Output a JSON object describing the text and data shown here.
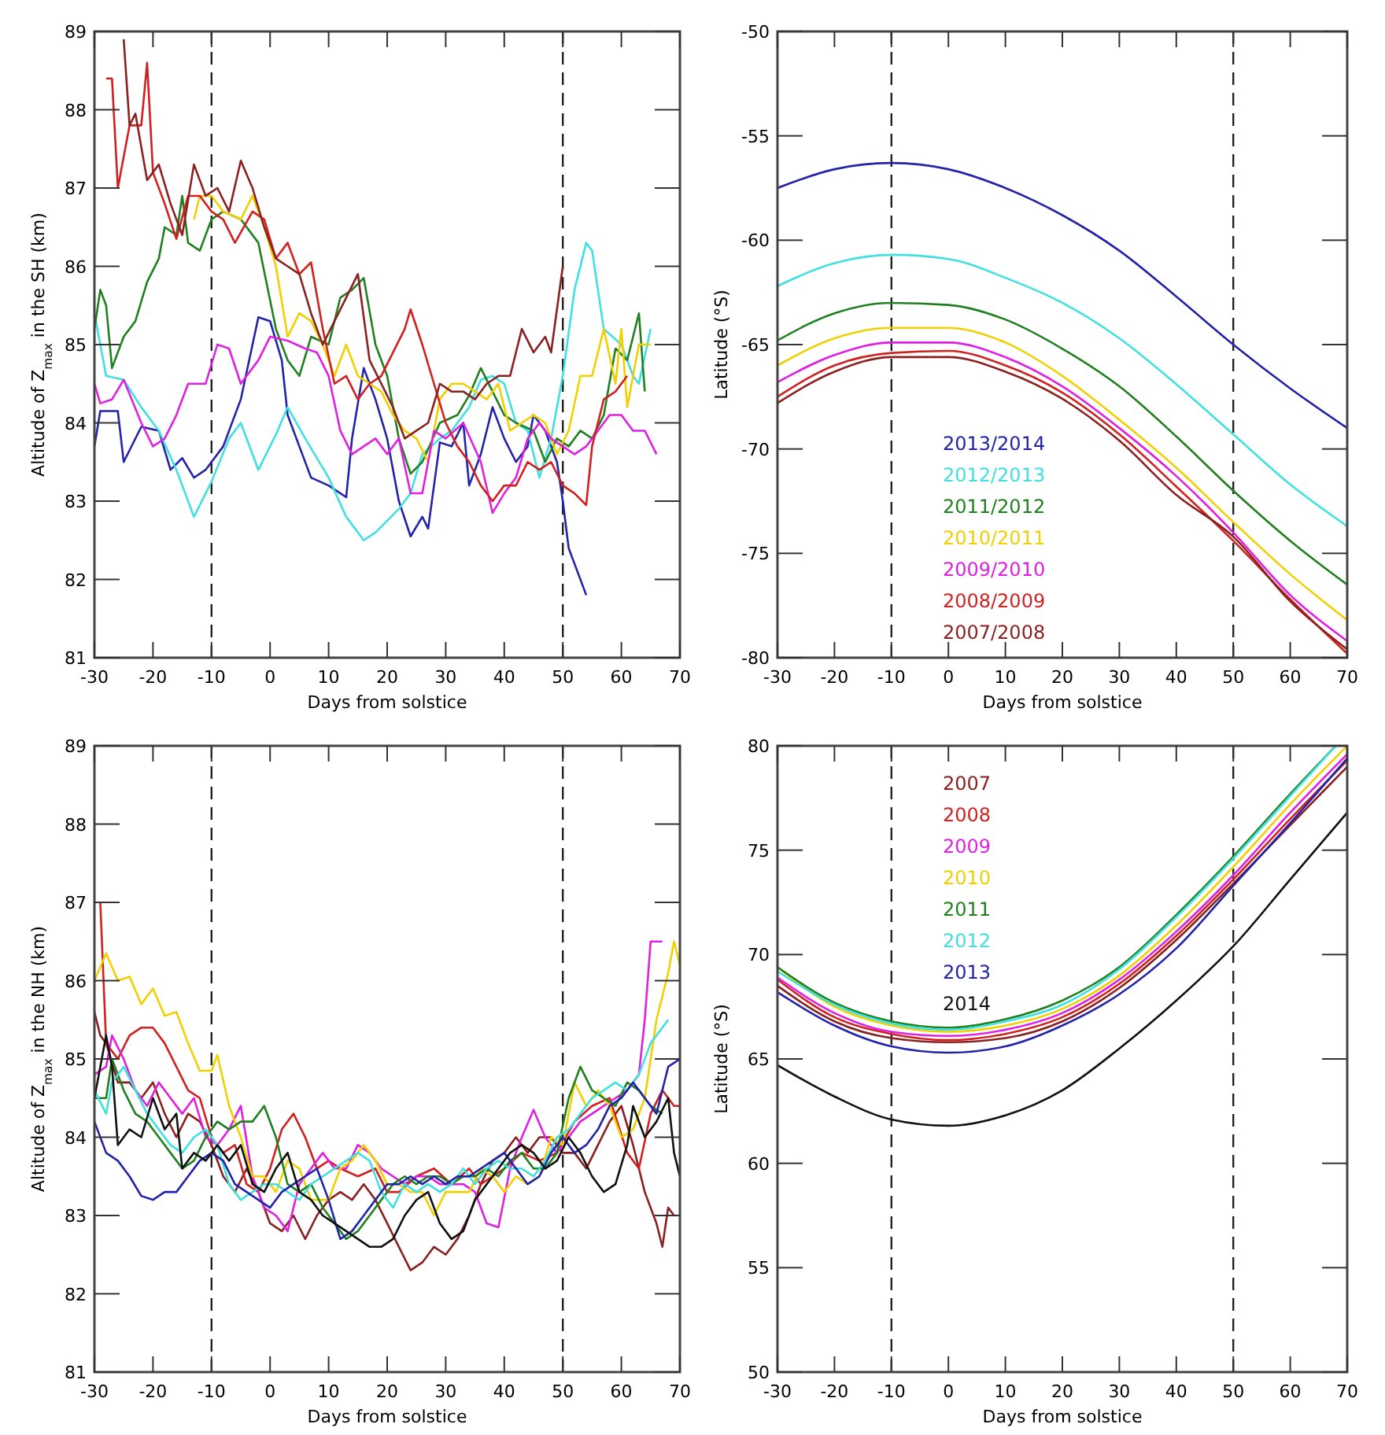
{
  "chart_data": [
    {
      "type": "line",
      "xlabel": "Days from solstice",
      "ylabel": "Altitude of Z$_{max}$ in the SH (km)",
      "xlim": [
        -30,
        70
      ],
      "xticks": [
        -30,
        -20,
        -10,
        0,
        10,
        20,
        30,
        40,
        50,
        60,
        70
      ],
      "ylim": [
        81,
        89
      ],
      "yticks": [
        81,
        82,
        83,
        84,
        85,
        86,
        87,
        88,
        89
      ],
      "legend": false,
      "ref_lines": [
        {
          "axis": "x",
          "value": -10,
          "line_style": "dashed"
        },
        {
          "axis": "x",
          "value": 50,
          "line_style": "dashed"
        }
      ],
      "series": [
        {
          "color": "#2222aa",
          "x": [
            -30,
            -29,
            -26,
            -25,
            -22,
            -19,
            -17,
            -15,
            -13,
            -11,
            -10,
            -8,
            -5,
            -2,
            0,
            2,
            3,
            5,
            7,
            10,
            13,
            14,
            16,
            18,
            20,
            22,
            24,
            26,
            27,
            29,
            31,
            33,
            34,
            36,
            38,
            40,
            42,
            44,
            45,
            47,
            49,
            50,
            51,
            52,
            54
          ],
          "values": [
            83.7,
            84.15,
            84.15,
            83.5,
            83.95,
            83.9,
            83.4,
            83.55,
            83.3,
            83.4,
            83.5,
            83.7,
            84.3,
            85.35,
            85.3,
            84.8,
            84.1,
            83.7,
            83.3,
            83.2,
            83.05,
            83.8,
            84.7,
            84.3,
            83.8,
            83.0,
            82.55,
            82.8,
            82.65,
            83.75,
            83.7,
            84.0,
            83.2,
            83.6,
            84.2,
            83.8,
            83.5,
            83.7,
            84.1,
            83.9,
            83.5,
            83.0,
            82.4,
            82.2,
            81.8
          ]
        },
        {
          "color": "#40e0e0",
          "x": [
            -30,
            -28,
            -25,
            -22,
            -19,
            -16,
            -13,
            -10,
            -7,
            -5,
            -2,
            1,
            3,
            6,
            10,
            13,
            16,
            18,
            20,
            22,
            24,
            26,
            29,
            31,
            34,
            36,
            38,
            40,
            42,
            44,
            46,
            48,
            50,
            52,
            54,
            55,
            57,
            60,
            62,
            63,
            65
          ],
          "values": [
            85.4,
            84.6,
            84.55,
            84.2,
            83.9,
            83.4,
            82.8,
            83.25,
            83.8,
            84.0,
            83.4,
            83.85,
            84.2,
            83.8,
            83.3,
            82.8,
            82.5,
            82.6,
            82.75,
            82.9,
            83.1,
            83.6,
            83.8,
            83.9,
            84.2,
            84.55,
            84.6,
            84.5,
            84.0,
            83.9,
            83.3,
            83.8,
            84.6,
            85.7,
            86.3,
            86.2,
            85.2,
            85.0,
            84.6,
            84.5,
            85.2
          ]
        },
        {
          "color": "#208020",
          "x": [
            -30,
            -29,
            -28,
            -27,
            -25,
            -23,
            -21,
            -19,
            -18,
            -16,
            -15,
            -14,
            -12,
            -10,
            -8,
            -5,
            -2,
            1,
            3,
            5,
            7,
            10,
            12,
            14,
            16,
            18,
            20,
            22,
            24,
            26,
            29,
            32,
            34,
            36,
            38,
            40,
            42,
            45,
            47,
            49,
            51,
            53,
            55,
            57,
            59,
            61,
            63,
            64
          ],
          "values": [
            85.2,
            85.7,
            85.5,
            84.7,
            85.1,
            85.3,
            85.8,
            86.1,
            86.5,
            86.4,
            86.9,
            86.3,
            86.2,
            86.6,
            86.7,
            86.6,
            86.3,
            85.2,
            84.8,
            84.6,
            85.1,
            85.0,
            85.6,
            85.7,
            85.85,
            85.0,
            84.6,
            83.8,
            83.35,
            83.5,
            84.0,
            84.1,
            84.35,
            84.7,
            84.4,
            84.1,
            84.0,
            83.9,
            83.5,
            83.8,
            83.7,
            83.9,
            83.8,
            84.1,
            84.95,
            84.8,
            85.4,
            84.4
          ]
        },
        {
          "color": "#f0d000",
          "x": [
            -13,
            -12,
            -10,
            -8,
            -5,
            -3,
            -1,
            1,
            3,
            5,
            7,
            9,
            11,
            13,
            15,
            17,
            19,
            21,
            23,
            25,
            27,
            29,
            31,
            33,
            35,
            37,
            39,
            41,
            43,
            45,
            47,
            49,
            51,
            53,
            55,
            57,
            59,
            60,
            61,
            63,
            65
          ],
          "values": [
            86.6,
            86.9,
            86.9,
            86.7,
            86.6,
            86.9,
            86.5,
            86.0,
            85.1,
            85.4,
            85.3,
            85.0,
            84.6,
            85.0,
            84.6,
            84.5,
            84.4,
            84.1,
            83.9,
            83.8,
            83.5,
            84.3,
            84.5,
            84.5,
            84.4,
            84.3,
            84.5,
            83.9,
            84.0,
            84.1,
            84.0,
            83.6,
            83.9,
            84.6,
            84.6,
            85.2,
            84.5,
            85.2,
            84.2,
            85.0,
            85.0
          ]
        },
        {
          "color": "#e020e0",
          "x": [
            -30,
            -29,
            -27,
            -25,
            -22,
            -20,
            -18,
            -16,
            -14,
            -11,
            -9,
            -7,
            -5,
            -2,
            0,
            3,
            6,
            8,
            10,
            12,
            14,
            16,
            18,
            20,
            22,
            24,
            26,
            28,
            30,
            33,
            36,
            38,
            40,
            42,
            44,
            46,
            48,
            50,
            52,
            54,
            56,
            58,
            60,
            62,
            64,
            66
          ],
          "values": [
            84.5,
            84.25,
            84.3,
            84.55,
            84.0,
            83.7,
            83.8,
            84.1,
            84.5,
            84.5,
            85.0,
            84.95,
            84.5,
            84.8,
            85.1,
            85.05,
            84.95,
            84.9,
            84.6,
            83.9,
            83.6,
            83.7,
            83.8,
            83.6,
            83.8,
            83.1,
            83.1,
            83.9,
            83.8,
            84.0,
            83.5,
            82.85,
            83.1,
            83.3,
            83.8,
            84.0,
            83.8,
            83.7,
            83.6,
            83.7,
            83.9,
            84.1,
            84.1,
            83.9,
            83.9,
            83.6
          ]
        },
        {
          "color": "#d02020",
          "x": [
            -28,
            -27,
            -26,
            -24,
            -22,
            -21,
            -20,
            -18,
            -16,
            -14,
            -12,
            -10,
            -8,
            -6,
            -3,
            -1,
            1,
            3,
            5,
            7,
            9,
            11,
            13,
            15,
            17,
            19,
            21,
            23,
            24,
            26,
            28,
            30,
            32,
            34,
            36,
            38,
            40,
            42,
            44,
            46,
            48,
            50,
            52,
            54,
            55,
            57,
            59,
            61
          ],
          "values": [
            88.4,
            88.4,
            87.0,
            87.8,
            87.8,
            88.6,
            87.2,
            86.8,
            86.35,
            86.9,
            86.9,
            86.7,
            86.6,
            86.3,
            86.7,
            86.6,
            86.1,
            86.3,
            85.9,
            86.05,
            85.2,
            84.5,
            84.6,
            84.3,
            84.5,
            84.6,
            84.9,
            85.2,
            85.45,
            85.0,
            84.5,
            84.0,
            83.7,
            83.5,
            83.2,
            83.0,
            83.2,
            83.2,
            83.5,
            83.4,
            83.5,
            83.2,
            83.1,
            82.95,
            83.7,
            84.3,
            84.4,
            84.6
          ]
        },
        {
          "color": "#8b2020",
          "x": [
            -25,
            -24,
            -23,
            -21,
            -19,
            -17,
            -15,
            -13,
            -11,
            -9,
            -7,
            -5,
            -3,
            -1,
            1,
            3,
            5,
            7,
            9,
            11,
            13,
            15,
            17,
            19,
            21,
            23,
            25,
            27,
            29,
            31,
            33,
            35,
            37,
            39,
            41,
            43,
            45,
            47,
            48,
            50
          ],
          "values": [
            88.9,
            87.8,
            87.95,
            87.1,
            87.3,
            86.8,
            86.4,
            87.3,
            86.9,
            87.0,
            86.7,
            87.35,
            87.0,
            86.5,
            86.1,
            86.0,
            85.9,
            85.4,
            85.0,
            85.3,
            85.6,
            85.9,
            84.8,
            84.5,
            84.2,
            83.8,
            83.9,
            84.0,
            84.5,
            84.4,
            84.4,
            84.3,
            84.5,
            84.6,
            84.6,
            85.2,
            84.9,
            85.1,
            84.9,
            86.0
          ]
        }
      ]
    },
    {
      "type": "line",
      "xlabel": "Days from solstice",
      "ylabel": "Latitude (°S)",
      "xlim": [
        -30,
        70
      ],
      "xticks": [
        -30,
        -20,
        -10,
        0,
        10,
        20,
        30,
        40,
        50,
        60,
        70
      ],
      "ylim": [
        -80,
        -50
      ],
      "yticks": [
        -80,
        -75,
        -70,
        -65,
        -60,
        -55,
        -50
      ],
      "legend": "bottom left",
      "ref_lines": [
        {
          "axis": "x",
          "value": -10,
          "line_style": "dashed"
        },
        {
          "axis": "x",
          "value": 50,
          "line_style": "dashed"
        }
      ],
      "x": [
        -30,
        -20,
        -10,
        0,
        10,
        20,
        30,
        40,
        50,
        60,
        70
      ],
      "series": [
        {
          "name": "2013/2014",
          "color": "#2222aa",
          "values": [
            -57.5,
            -56.6,
            -56.3,
            -56.6,
            -57.5,
            -58.8,
            -60.5,
            -62.7,
            -65.0,
            -67.1,
            -69.0
          ]
        },
        {
          "name": "2012/2013",
          "color": "#40e0e0",
          "values": [
            -62.2,
            -61.1,
            -60.7,
            -60.9,
            -61.8,
            -63.0,
            -64.7,
            -66.9,
            -69.3,
            -71.7,
            -73.7
          ]
        },
        {
          "name": "2011/2012",
          "color": "#208020",
          "values": [
            -64.8,
            -63.5,
            -63.0,
            -63.1,
            -63.8,
            -65.2,
            -67.0,
            -69.4,
            -72.0,
            -74.4,
            -76.5
          ]
        },
        {
          "name": "2010/2011",
          "color": "#f0d000",
          "values": [
            -66.0,
            -64.7,
            -64.2,
            -64.2,
            -64.9,
            -66.5,
            -68.6,
            -70.9,
            -73.5,
            -76.0,
            -78.2
          ]
        },
        {
          "name": "2009/2010",
          "color": "#e020e0",
          "values": [
            -66.8,
            -65.5,
            -64.9,
            -64.9,
            -65.6,
            -67.0,
            -69.0,
            -71.3,
            -74.0,
            -77.0,
            -79.2
          ]
        },
        {
          "name": "2008/2009",
          "color": "#d02020",
          "values": [
            -67.5,
            -66.0,
            -65.4,
            -65.3,
            -66.0,
            -67.3,
            -69.3,
            -71.8,
            -74.4,
            -77.2,
            -79.8
          ]
        },
        {
          "name": "2007/2008",
          "color": "#8b2020",
          "values": [
            -67.8,
            -66.3,
            -65.6,
            -65.6,
            -66.3,
            -67.6,
            -69.6,
            -72.2,
            -74.2,
            -77.3,
            -79.6
          ]
        }
      ]
    },
    {
      "type": "line",
      "xlabel": "Days from solstice",
      "ylabel": "Altitude of Z$_{max}$ in the NH (km)",
      "xlim": [
        -30,
        70
      ],
      "xticks": [
        -30,
        -20,
        -10,
        0,
        10,
        20,
        30,
        40,
        50,
        60,
        70
      ],
      "ylim": [
        81,
        89
      ],
      "yticks": [
        81,
        82,
        83,
        84,
        85,
        86,
        87,
        88,
        89
      ],
      "legend": false,
      "ref_lines": [
        {
          "axis": "x",
          "value": -10,
          "line_style": "dashed"
        },
        {
          "axis": "x",
          "value": 50,
          "line_style": "dashed"
        }
      ],
      "series": [
        {
          "color": "#8b2020",
          "x": [
            -30,
            -29,
            -28,
            -26,
            -24,
            -22,
            -20,
            -18,
            -16,
            -14,
            -12,
            -10,
            -8,
            -6,
            -4,
            -2,
            0,
            2,
            4,
            6,
            8,
            10,
            12,
            14,
            16,
            18,
            20,
            22,
            24,
            26,
            28,
            30,
            32,
            34,
            36,
            38,
            40,
            42,
            44,
            46,
            48,
            50,
            52,
            54,
            56,
            58,
            60,
            62,
            64,
            66,
            67,
            68,
            69
          ],
          "values": [
            85.6,
            85.3,
            85.2,
            84.7,
            84.7,
            84.5,
            84.7,
            84.3,
            84.0,
            84.3,
            84.2,
            83.9,
            83.5,
            83.3,
            83.6,
            83.3,
            82.9,
            82.8,
            83.0,
            82.7,
            83.0,
            83.2,
            83.3,
            83.2,
            83.4,
            83.2,
            82.9,
            82.6,
            82.3,
            82.4,
            82.6,
            82.5,
            82.7,
            83.0,
            83.4,
            83.7,
            83.8,
            84.0,
            83.8,
            84.0,
            84.0,
            83.8,
            83.8,
            83.6,
            83.9,
            84.2,
            84.4,
            83.9,
            83.3,
            82.9,
            82.6,
            83.1,
            83.0
          ]
        },
        {
          "color": "#d02020",
          "x": [
            -29,
            -28,
            -26,
            -24,
            -22,
            -20,
            -18,
            -16,
            -14,
            -12,
            -10,
            -8,
            -6,
            -4,
            -2,
            0,
            2,
            4,
            6,
            8,
            10,
            12,
            15,
            18,
            20,
            22,
            25,
            28,
            31,
            34,
            36,
            38,
            40,
            43,
            46,
            49,
            52,
            55,
            58,
            61,
            63,
            65,
            67,
            69,
            70
          ],
          "values": [
            87.0,
            85.2,
            85.0,
            85.3,
            85.4,
            85.4,
            85.2,
            84.9,
            84.6,
            84.5,
            84.0,
            83.8,
            83.9,
            83.4,
            83.3,
            83.6,
            84.1,
            84.3,
            84.0,
            83.6,
            83.7,
            83.6,
            83.5,
            83.6,
            83.3,
            83.3,
            83.5,
            83.6,
            83.4,
            83.6,
            83.4,
            83.5,
            83.6,
            83.8,
            83.7,
            83.8,
            84.2,
            84.4,
            84.5,
            83.8,
            83.6,
            84.3,
            84.6,
            84.4,
            84.4
          ]
        },
        {
          "color": "#e020e0",
          "x": [
            -30,
            -28,
            -27,
            -25,
            -23,
            -21,
            -19,
            -17,
            -15,
            -13,
            -11,
            -9,
            -7,
            -5,
            -3,
            -1,
            1,
            3,
            5,
            7,
            9,
            11,
            13,
            15,
            17,
            19,
            21,
            23,
            25,
            27,
            29,
            31,
            33,
            35,
            37,
            39,
            41,
            43,
            45,
            47,
            49,
            51,
            53,
            55,
            57,
            59,
            61,
            63,
            64,
            65,
            67
          ],
          "values": [
            84.8,
            84.9,
            85.3,
            85.0,
            84.6,
            84.4,
            84.7,
            84.5,
            84.3,
            84.5,
            84.0,
            83.9,
            84.1,
            84.4,
            83.5,
            83.1,
            83.0,
            82.8,
            83.4,
            83.6,
            83.8,
            83.6,
            83.6,
            83.9,
            83.8,
            83.6,
            83.5,
            83.4,
            83.5,
            83.5,
            83.4,
            83.4,
            83.4,
            83.3,
            82.9,
            82.85,
            83.6,
            84.0,
            84.35,
            84.0,
            83.8,
            84.0,
            84.2,
            84.3,
            84.4,
            84.5,
            84.6,
            84.8,
            85.5,
            86.5,
            86.5
          ]
        },
        {
          "color": "#f0d000",
          "x": [
            -30,
            -28,
            -26,
            -24,
            -22,
            -20,
            -18,
            -16,
            -14,
            -12,
            -10,
            -9,
            -7,
            -5,
            -3,
            -1,
            1,
            3,
            5,
            7,
            10,
            12,
            14,
            16,
            18,
            20,
            22,
            24,
            26,
            28,
            30,
            32,
            34,
            36,
            38,
            40,
            42,
            44,
            46,
            48,
            50,
            52,
            54,
            56,
            58,
            60,
            62,
            64,
            66,
            68,
            69,
            70
          ],
          "values": [
            86.0,
            86.35,
            86.0,
            86.05,
            85.7,
            85.9,
            85.55,
            85.6,
            85.2,
            84.85,
            84.85,
            85.05,
            84.4,
            84.0,
            83.5,
            83.5,
            83.3,
            83.7,
            83.6,
            83.2,
            83.2,
            83.6,
            83.7,
            83.9,
            83.7,
            83.4,
            83.4,
            83.3,
            83.3,
            83.0,
            83.3,
            83.3,
            83.3,
            83.6,
            83.5,
            83.3,
            83.5,
            83.4,
            83.5,
            84.0,
            83.9,
            84.7,
            84.4,
            84.6,
            84.4,
            84.0,
            84.1,
            84.5,
            85.5,
            86.1,
            86.5,
            86.2
          ]
        },
        {
          "color": "#208020",
          "x": [
            -30,
            -28,
            -27,
            -25,
            -23,
            -21,
            -19,
            -17,
            -15,
            -13,
            -11,
            -9,
            -7,
            -5,
            -3,
            -1,
            1,
            3,
            5,
            7,
            9,
            11,
            13,
            15,
            17,
            19,
            21,
            23,
            25,
            27,
            29,
            31,
            33,
            35,
            37,
            39,
            41,
            43,
            45,
            47,
            49,
            51,
            53,
            55,
            57,
            59,
            61,
            63,
            65,
            67
          ],
          "values": [
            84.5,
            84.5,
            85.0,
            84.6,
            84.3,
            84.2,
            84.0,
            83.8,
            83.6,
            83.7,
            84.0,
            84.2,
            84.1,
            84.2,
            84.2,
            84.4,
            84.0,
            83.4,
            83.3,
            83.4,
            83.1,
            82.9,
            82.7,
            82.8,
            83.0,
            83.2,
            83.4,
            83.5,
            83.4,
            83.5,
            83.5,
            83.4,
            83.5,
            83.5,
            83.6,
            83.5,
            83.7,
            83.8,
            83.6,
            83.6,
            83.8,
            84.5,
            84.9,
            84.6,
            84.5,
            84.4,
            84.7,
            84.6,
            84.4,
            84.3
          ]
        },
        {
          "color": "#40e0e0",
          "x": [
            -30,
            -28,
            -27,
            -25,
            -23,
            -21,
            -19,
            -17,
            -15,
            -13,
            -11,
            -9,
            -7,
            -5,
            -3,
            -1,
            1,
            3,
            5,
            7,
            9,
            11,
            13,
            15,
            17,
            19,
            21,
            23,
            25,
            27,
            29,
            31,
            33,
            35,
            37,
            39,
            41,
            43,
            45,
            47,
            49,
            51,
            53,
            55,
            57,
            59,
            61,
            63,
            65,
            67,
            68
          ],
          "values": [
            84.6,
            84.3,
            84.7,
            84.9,
            84.6,
            84.3,
            84.1,
            83.9,
            83.8,
            84.0,
            84.1,
            83.9,
            83.4,
            83.2,
            83.3,
            83.4,
            83.4,
            83.3,
            83.2,
            83.4,
            83.5,
            83.6,
            83.7,
            83.8,
            83.7,
            83.3,
            83.1,
            83.4,
            83.3,
            83.4,
            83.3,
            83.4,
            83.6,
            83.4,
            83.6,
            83.7,
            83.6,
            83.6,
            83.5,
            83.7,
            84.0,
            84.1,
            84.3,
            84.5,
            84.6,
            84.7,
            84.6,
            84.8,
            85.2,
            85.4,
            85.5
          ]
        },
        {
          "color": "#2222aa",
          "x": [
            -30,
            -28,
            -26,
            -24,
            -22,
            -20,
            -18,
            -16,
            -14,
            -12,
            -10,
            -8,
            -6,
            -4,
            -2,
            0,
            2,
            4,
            6,
            8,
            10,
            12,
            14,
            16,
            18,
            20,
            22,
            24,
            26,
            28,
            30,
            32,
            34,
            36,
            38,
            40,
            42,
            44,
            46,
            48,
            50,
            52,
            54,
            56,
            58,
            60,
            62,
            64,
            66,
            68,
            70
          ],
          "values": [
            84.2,
            83.8,
            83.7,
            83.5,
            83.25,
            83.2,
            83.3,
            83.3,
            83.5,
            83.7,
            83.8,
            83.7,
            83.4,
            83.3,
            83.2,
            83.1,
            83.3,
            83.4,
            83.5,
            83.6,
            83.2,
            82.7,
            82.8,
            83.0,
            83.2,
            83.4,
            83.4,
            83.5,
            83.4,
            83.5,
            83.4,
            83.5,
            83.5,
            83.6,
            83.7,
            83.8,
            83.6,
            83.4,
            83.5,
            83.8,
            84.0,
            83.8,
            83.9,
            84.1,
            84.4,
            84.5,
            84.7,
            84.5,
            84.3,
            84.9,
            85.0
          ]
        },
        {
          "color": "#111111",
          "x": [
            -30,
            -28,
            -27,
            -26,
            -24,
            -22,
            -20,
            -18,
            -16,
            -15,
            -13,
            -11,
            -9,
            -7,
            -5,
            -3,
            -1,
            1,
            3,
            5,
            7,
            9,
            11,
            13,
            15,
            17,
            19,
            21,
            23,
            25,
            27,
            29,
            31,
            33,
            35,
            37,
            39,
            41,
            43,
            45,
            47,
            49,
            51,
            53,
            55,
            57,
            59,
            61,
            62,
            64,
            66,
            68,
            69,
            70
          ],
          "values": [
            84.5,
            85.3,
            84.9,
            83.9,
            84.1,
            84.0,
            84.5,
            84.1,
            84.3,
            83.6,
            83.8,
            83.7,
            83.9,
            83.7,
            83.9,
            83.4,
            83.3,
            83.6,
            83.8,
            83.3,
            83.2,
            83.0,
            82.9,
            82.8,
            82.7,
            82.6,
            82.6,
            82.7,
            83.0,
            83.2,
            83.3,
            82.9,
            82.7,
            82.8,
            83.2,
            83.4,
            83.6,
            83.8,
            83.9,
            83.8,
            83.6,
            83.7,
            84.0,
            83.8,
            83.5,
            83.3,
            83.4,
            83.9,
            84.4,
            84.0,
            84.2,
            84.5,
            83.8,
            83.5
          ]
        }
      ]
    },
    {
      "type": "line",
      "xlabel": "Days from solstice",
      "ylabel": "Latitude (°S)",
      "xlim": [
        -30,
        70
      ],
      "xticks": [
        -30,
        -20,
        -10,
        0,
        10,
        20,
        30,
        40,
        50,
        60,
        70
      ],
      "ylim": [
        50,
        80
      ],
      "yticks": [
        50,
        55,
        60,
        65,
        70,
        75,
        80
      ],
      "legend": "top left",
      "ref_lines": [
        {
          "axis": "x",
          "value": -10,
          "line_style": "dashed"
        },
        {
          "axis": "x",
          "value": 50,
          "line_style": "dashed"
        }
      ],
      "x": [
        -30,
        -20,
        -10,
        0,
        10,
        20,
        30,
        40,
        50,
        60,
        70
      ],
      "series": [
        {
          "name": "2007",
          "color": "#8b2020",
          "values": [
            68.5,
            66.8,
            66.0,
            65.8,
            66.0,
            66.8,
            68.4,
            70.7,
            73.4,
            76.2,
            79.0
          ]
        },
        {
          "name": "2008",
          "color": "#d02020",
          "values": [
            68.8,
            67.0,
            66.2,
            65.9,
            66.2,
            67.0,
            68.6,
            70.9,
            73.6,
            76.5,
            79.3
          ]
        },
        {
          "name": "2009",
          "color": "#e020e0",
          "values": [
            68.9,
            67.2,
            66.3,
            66.1,
            66.4,
            67.2,
            68.8,
            71.1,
            73.8,
            76.8,
            79.6
          ]
        },
        {
          "name": "2010",
          "color": "#f0d000",
          "values": [
            69.4,
            67.5,
            66.6,
            66.3,
            66.6,
            67.4,
            69.0,
            71.4,
            74.2,
            77.2,
            80.0
          ]
        },
        {
          "name": "2011",
          "color": "#208020",
          "x": [
            -30,
            -20,
            -10,
            0,
            10,
            20,
            30,
            40,
            50,
            60,
            68
          ],
          "values": [
            69.4,
            67.7,
            66.8,
            66.5,
            66.9,
            67.8,
            69.4,
            71.9,
            74.7,
            77.7,
            80.0
          ]
        },
        {
          "name": "2012",
          "color": "#40e0e0",
          "x": [
            -30,
            -20,
            -10,
            0,
            10,
            20,
            30,
            40,
            50,
            60,
            68
          ],
          "values": [
            69.2,
            67.6,
            66.7,
            66.4,
            66.8,
            67.6,
            69.3,
            71.8,
            74.6,
            77.6,
            80.0
          ]
        },
        {
          "name": "2013",
          "color": "#2222aa",
          "values": [
            68.2,
            66.6,
            65.6,
            65.3,
            65.6,
            66.6,
            68.1,
            70.3,
            73.3,
            76.3,
            79.4
          ]
        },
        {
          "name": "2014",
          "color": "#111111",
          "values": [
            64.7,
            63.2,
            62.1,
            61.8,
            62.3,
            63.5,
            65.5,
            67.8,
            70.4,
            73.6,
            76.8
          ]
        }
      ]
    }
  ]
}
